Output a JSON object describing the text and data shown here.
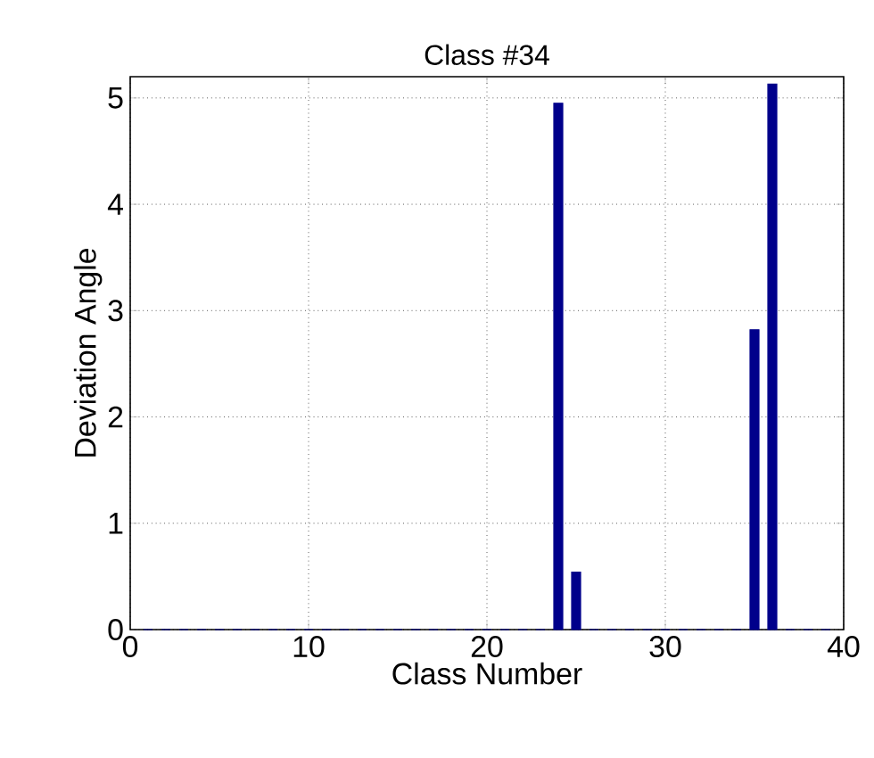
{
  "chart_data": {
    "type": "bar",
    "title": "Class #34",
    "xlabel": "Class Number",
    "ylabel": "Deviation Angle",
    "x": [
      1,
      2,
      3,
      4,
      5,
      6,
      7,
      8,
      9,
      10,
      11,
      12,
      13,
      14,
      15,
      16,
      17,
      18,
      19,
      20,
      21,
      22,
      23,
      24,
      25,
      26,
      27,
      28,
      29,
      30,
      31,
      32,
      33,
      34,
      35,
      36,
      37,
      38,
      39
    ],
    "values": [
      0,
      0,
      0,
      0,
      0,
      0,
      0,
      0,
      0,
      0,
      0,
      0,
      0,
      0,
      0,
      0,
      0,
      0,
      0,
      0,
      0,
      0,
      0,
      4.95,
      0.54,
      0,
      0,
      0,
      0,
      0,
      0,
      0,
      0,
      0,
      2.82,
      5.13,
      0,
      0,
      0
    ],
    "color": "#00008b",
    "xlim": [
      0,
      40
    ],
    "ylim": [
      0,
      5.2
    ],
    "xticks": [
      0,
      10,
      20,
      30,
      40
    ],
    "yticks": [
      0,
      1,
      2,
      3,
      4,
      5
    ],
    "grid": true,
    "line_style": "dotted"
  }
}
